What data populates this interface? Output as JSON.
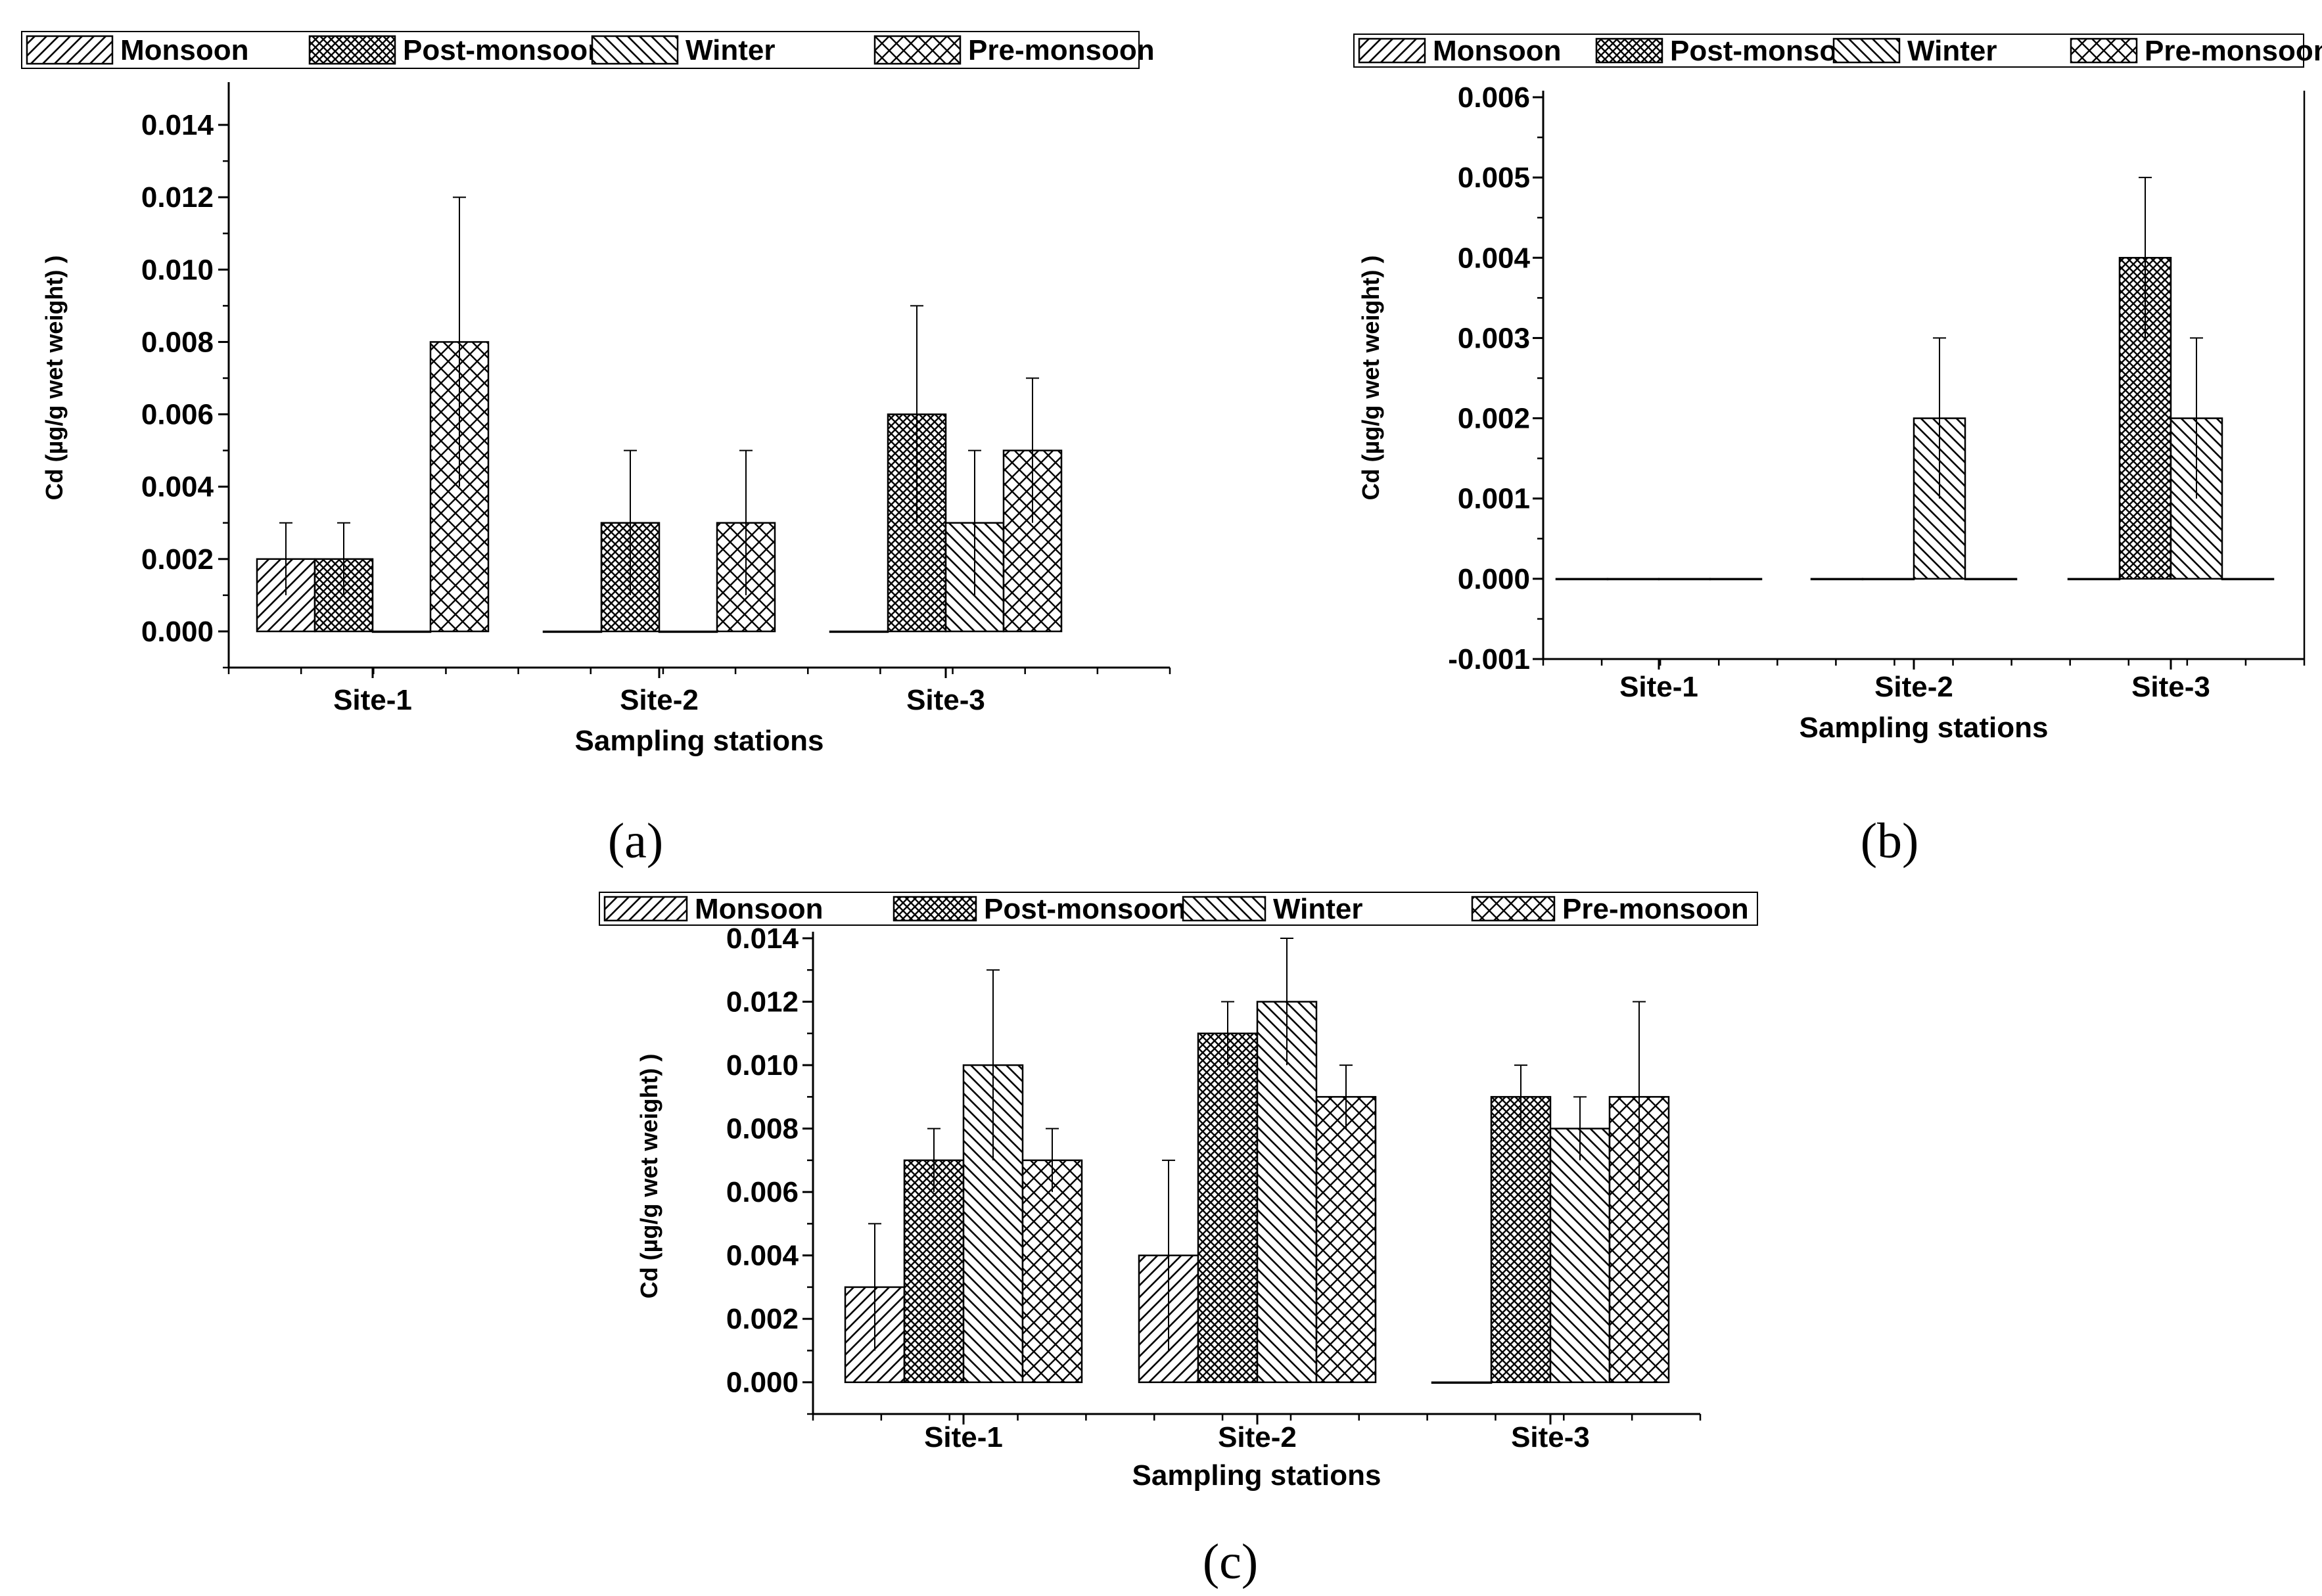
{
  "chart_data": [
    {
      "panel": "(a)",
      "type": "bar",
      "categories": [
        "Site-1",
        "Site-2",
        "Site-3"
      ],
      "series": [
        {
          "name": "Monsoon",
          "values": [
            0.002,
            0.0,
            0.0
          ],
          "errors": [
            0.001,
            0.0,
            0.0
          ]
        },
        {
          "name": "Post-monsoon",
          "values": [
            0.002,
            0.003,
            0.006
          ],
          "errors": [
            0.001,
            0.002,
            0.003
          ]
        },
        {
          "name": "Winter",
          "values": [
            0.0,
            0.0,
            0.003
          ],
          "errors": [
            0.0,
            0.0,
            0.002
          ]
        },
        {
          "name": "Pre-monsoon",
          "values": [
            0.008,
            0.003,
            0.005
          ],
          "errors": [
            0.004,
            0.002,
            0.002
          ]
        }
      ],
      "xlabel": "Sampling stations",
      "ylabel": "Cd (µg/g wet weight) )",
      "ylim": [
        -0.001,
        0.015
      ],
      "yticks": [
        "0.000",
        "0.002",
        "0.004",
        "0.006",
        "0.008",
        "0.010",
        "0.012",
        "0.014"
      ],
      "ytick_values": [
        0,
        0.002,
        0.004,
        0.006,
        0.008,
        0.01,
        0.012,
        0.014
      ]
    },
    {
      "panel": "(b)",
      "type": "bar",
      "categories": [
        "Site-1",
        "Site-2",
        "Site-3"
      ],
      "series": [
        {
          "name": "Monsoon",
          "values": [
            0.0,
            0.0,
            0.0
          ],
          "errors": [
            0.0,
            0.0,
            0.0
          ]
        },
        {
          "name": "Post-monsoon",
          "values": [
            0.0,
            0.0,
            0.004
          ],
          "errors": [
            0.0,
            0.0,
            0.001
          ]
        },
        {
          "name": "Winter",
          "values": [
            0.0,
            0.002,
            0.002
          ],
          "errors": [
            0.0,
            0.001,
            0.001
          ]
        },
        {
          "name": "Pre-monsoon",
          "values": [
            0.0,
            0.0,
            0.0
          ],
          "errors": [
            0.0,
            0.0,
            0.0
          ]
        }
      ],
      "xlabel": "Sampling stations",
      "ylabel": "Cd (µg/g wet weight) )",
      "ylim": [
        -0.001,
        0.006
      ],
      "yticks": [
        "-0.001",
        "0.000",
        "0.001",
        "0.002",
        "0.003",
        "0.004",
        "0.005",
        "0.006"
      ],
      "ytick_values": [
        -0.001,
        0,
        0.001,
        0.002,
        0.003,
        0.004,
        0.005,
        0.006
      ]
    },
    {
      "panel": "(c)",
      "type": "bar",
      "categories": [
        "Site-1",
        "Site-2",
        "Site-3"
      ],
      "series": [
        {
          "name": "Monsoon",
          "values": [
            0.003,
            0.004,
            0.0
          ],
          "errors": [
            0.002,
            0.003,
            0.0
          ]
        },
        {
          "name": "Post-monsoon",
          "values": [
            0.007,
            0.011,
            0.009
          ],
          "errors": [
            0.001,
            0.001,
            0.001
          ]
        },
        {
          "name": "Winter",
          "values": [
            0.01,
            0.012,
            0.008
          ],
          "errors": [
            0.003,
            0.002,
            0.001
          ]
        },
        {
          "name": "Pre-monsoon",
          "values": [
            0.007,
            0.009,
            0.009
          ],
          "errors": [
            0.001,
            0.001,
            0.003
          ]
        }
      ],
      "xlabel": "Sampling stations",
      "ylabel": "Cd (µg/g wet weight) )",
      "ylim": [
        -0.001,
        0.014
      ],
      "yticks": [
        "0.000",
        "0.002",
        "0.004",
        "0.006",
        "0.008",
        "0.010",
        "0.012",
        "0.014"
      ],
      "ytick_values": [
        0,
        0.002,
        0.004,
        0.006,
        0.008,
        0.01,
        0.012,
        0.014
      ]
    }
  ],
  "legend": {
    "entries": [
      "Monsoon",
      "Post-monsoon",
      "Winter",
      "Pre-monsoon"
    ],
    "patterns": [
      "diag-right",
      "crosshatch-dense",
      "diag-left",
      "crosshatch-open"
    ]
  },
  "colors": {
    "bar_fill": "#ffffff",
    "stroke": "#000000",
    "background": "#ffffff"
  }
}
